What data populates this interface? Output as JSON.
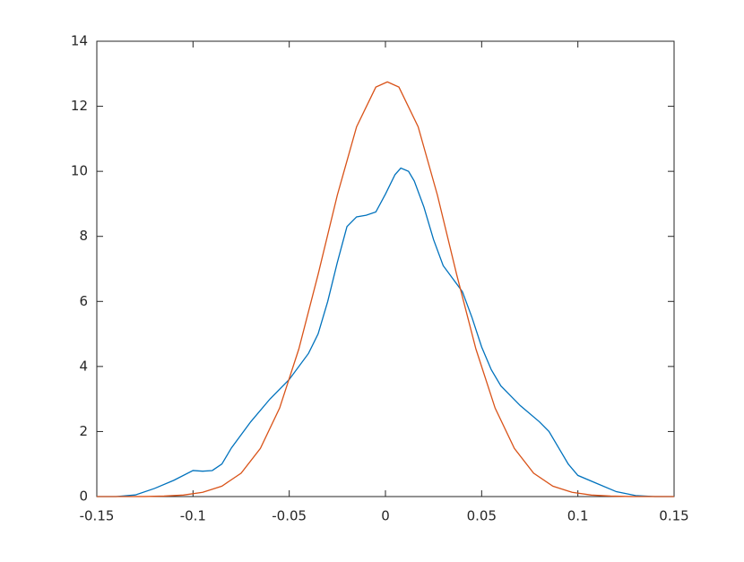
{
  "chart_data": {
    "type": "line",
    "xlim": [
      -0.15,
      0.15
    ],
    "xticks": [
      -0.15,
      -0.1,
      -0.05,
      0,
      0.05,
      0.1,
      0.15
    ],
    "ylim": [
      0,
      14
    ],
    "yticks": [
      0,
      2,
      4,
      6,
      8,
      10,
      12,
      14
    ],
    "grid": false,
    "box": true,
    "series": [
      {
        "color": "#0072bd",
        "x": [
          -0.15,
          -0.14,
          -0.13,
          -0.12,
          -0.11,
          -0.1,
          -0.095,
          -0.09,
          -0.085,
          -0.08,
          -0.07,
          -0.06,
          -0.05,
          -0.04,
          -0.035,
          -0.03,
          -0.025,
          -0.02,
          -0.015,
          -0.01,
          -0.005,
          0,
          0.005,
          0.008,
          0.012,
          0.015,
          0.02,
          0.025,
          0.03,
          0.035,
          0.04,
          0.045,
          0.05,
          0.055,
          0.06,
          0.07,
          0.08,
          0.085,
          0.09,
          0.095,
          0.1,
          0.11,
          0.12,
          0.13,
          0.14,
          0.15
        ],
        "values": [
          0,
          0,
          0.05,
          0.25,
          0.5,
          0.8,
          0.78,
          0.8,
          1.0,
          1.5,
          2.3,
          3.0,
          3.6,
          4.4,
          5.0,
          6.0,
          7.2,
          8.3,
          8.6,
          8.65,
          8.75,
          9.3,
          9.9,
          10.1,
          10.0,
          9.7,
          8.9,
          7.9,
          7.1,
          6.7,
          6.3,
          5.5,
          4.6,
          3.9,
          3.4,
          2.8,
          2.3,
          2.0,
          1.5,
          1.0,
          0.65,
          0.4,
          0.15,
          0.03,
          0,
          0
        ]
      },
      {
        "color": "#d95319",
        "x": [
          -0.15,
          -0.125,
          -0.115,
          -0.105,
          -0.095,
          -0.085,
          -0.075,
          -0.065,
          -0.055,
          -0.045,
          -0.035,
          -0.025,
          -0.015,
          -0.005,
          0.001,
          0.007,
          0.017,
          0.027,
          0.037,
          0.047,
          0.057,
          0.067,
          0.077,
          0.087,
          0.097,
          0.107,
          0.117,
          0.127,
          0.15
        ],
        "values": [
          0,
          0.002,
          0.015,
          0.046,
          0.13,
          0.32,
          0.72,
          1.48,
          2.72,
          4.54,
          6.83,
          9.27,
          11.37,
          12.59,
          12.75,
          12.59,
          11.37,
          9.27,
          6.83,
          4.54,
          2.72,
          1.48,
          0.72,
          0.32,
          0.13,
          0.046,
          0.015,
          0.002,
          0
        ]
      }
    ]
  }
}
